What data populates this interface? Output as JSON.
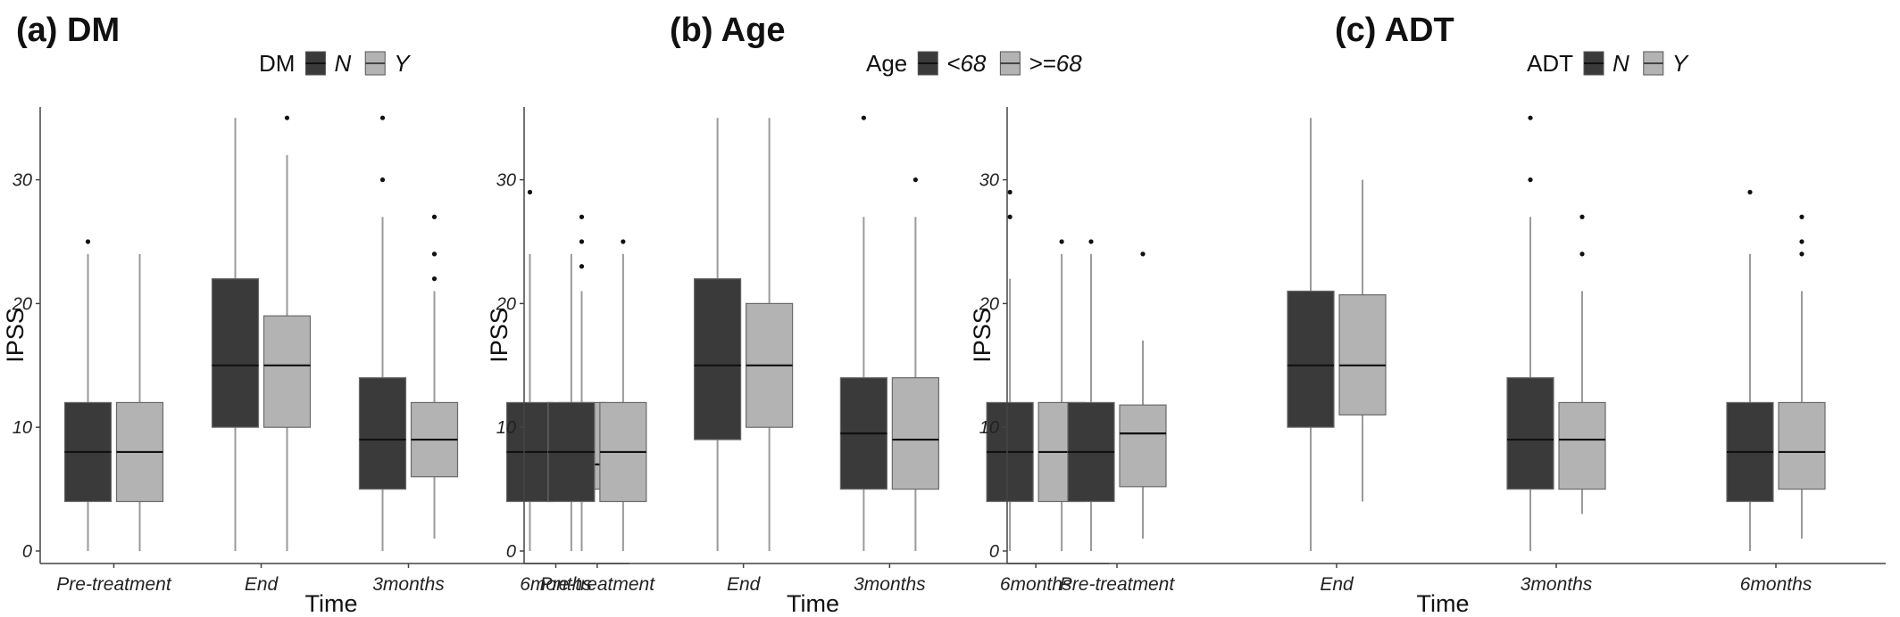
{
  "chart_data": [
    {
      "type": "boxplot",
      "panel_label": "(a) DM",
      "legend_title": "DM",
      "legend_position": "top",
      "xlabel": "Time",
      "ylabel": "IPSS",
      "ylim": [
        0,
        35
      ],
      "yticks": [
        0,
        10,
        20,
        30
      ],
      "grid": false,
      "categories": [
        "Pre-treatment",
        "End",
        "3months",
        "6months"
      ],
      "series": [
        {
          "name": "N",
          "color": "#3a3a3a",
          "boxes": [
            {
              "min": 0,
              "q1": 4,
              "median": 8,
              "q3": 12,
              "max": 24,
              "outliers": [
                25
              ]
            },
            {
              "min": 0,
              "q1": 10,
              "median": 15,
              "q3": 22,
              "max": 35,
              "outliers": []
            },
            {
              "min": 0,
              "q1": 5,
              "median": 9,
              "q3": 14,
              "max": 27,
              "outliers": [
                30,
                35
              ]
            },
            {
              "min": 0,
              "q1": 4,
              "median": 8,
              "q3": 12,
              "max": 24,
              "outliers": [
                29
              ]
            }
          ]
        },
        {
          "name": "Y",
          "color": "#b3b3b3",
          "boxes": [
            {
              "min": 0,
              "q1": 4,
              "median": 8,
              "q3": 12,
              "max": 24,
              "outliers": []
            },
            {
              "min": 0,
              "q1": 10,
              "median": 15,
              "q3": 19,
              "max": 32,
              "outliers": [
                35
              ]
            },
            {
              "min": 1,
              "q1": 6,
              "median": 9,
              "q3": 12,
              "max": 21,
              "outliers": [
                22,
                24,
                27
              ]
            },
            {
              "min": 0,
              "q1": 5,
              "median": 7,
              "q3": 12,
              "max": 21,
              "outliers": [
                23,
                25,
                27
              ]
            }
          ]
        }
      ]
    },
    {
      "type": "boxplot",
      "panel_label": "(b) Age",
      "legend_title": "Age",
      "legend_position": "top",
      "xlabel": "Time",
      "ylabel": "IPSS",
      "ylim": [
        0,
        35
      ],
      "yticks": [
        0,
        10,
        20,
        30
      ],
      "grid": false,
      "categories": [
        "Pre-treatment",
        "End",
        "3months",
        "6months"
      ],
      "series": [
        {
          "name": "<68",
          "color": "#3a3a3a",
          "boxes": [
            {
              "min": 0,
              "q1": 4,
              "median": 8,
              "q3": 12,
              "max": 24,
              "outliers": []
            },
            {
              "min": 0,
              "q1": 9,
              "median": 15,
              "q3": 22,
              "max": 35,
              "outliers": []
            },
            {
              "min": 0,
              "q1": 5,
              "median": 9.5,
              "q3": 14,
              "max": 27,
              "outliers": [
                35
              ]
            },
            {
              "min": 0,
              "q1": 4,
              "median": 8,
              "q3": 12,
              "max": 22,
              "outliers": [
                27,
                29
              ]
            }
          ]
        },
        {
          "name": ">=68",
          "color": "#b3b3b3",
          "boxes": [
            {
              "min": 0,
              "q1": 4,
              "median": 8,
              "q3": 12,
              "max": 24,
              "outliers": [
                25
              ]
            },
            {
              "min": 0,
              "q1": 10,
              "median": 15,
              "q3": 20,
              "max": 35,
              "outliers": []
            },
            {
              "min": 0,
              "q1": 5,
              "median": 9,
              "q3": 14,
              "max": 27,
              "outliers": [
                30
              ]
            },
            {
              "min": 0,
              "q1": 4,
              "median": 8,
              "q3": 12,
              "max": 24,
              "outliers": [
                25
              ]
            }
          ]
        }
      ]
    },
    {
      "type": "boxplot",
      "panel_label": "(c) ADT",
      "legend_title": "ADT",
      "legend_position": "top",
      "xlabel": "Time",
      "ylabel": "IPSS",
      "ylim": [
        0,
        35
      ],
      "yticks": [
        0,
        10,
        20,
        30
      ],
      "grid": false,
      "categories": [
        "Pre-treatment",
        "End",
        "3months",
        "6months"
      ],
      "series": [
        {
          "name": "N",
          "color": "#3a3a3a",
          "boxes": [
            {
              "min": 0,
              "q1": 4,
              "median": 8,
              "q3": 12,
              "max": 24,
              "outliers": [
                25
              ]
            },
            {
              "min": 0,
              "q1": 10,
              "median": 15,
              "q3": 21,
              "max": 35,
              "outliers": []
            },
            {
              "min": 0,
              "q1": 5,
              "median": 9,
              "q3": 14,
              "max": 27,
              "outliers": [
                30,
                35
              ]
            },
            {
              "min": 0,
              "q1": 4,
              "median": 8,
              "q3": 12,
              "max": 24,
              "outliers": [
                29
              ]
            }
          ]
        },
        {
          "name": "Y",
          "color": "#b3b3b3",
          "boxes": [
            {
              "min": 1,
              "q1": 5.2,
              "median": 9.5,
              "q3": 11.8,
              "max": 17,
              "outliers": [
                24
              ]
            },
            {
              "min": 4,
              "q1": 11,
              "median": 15,
              "q3": 20.7,
              "max": 30,
              "outliers": []
            },
            {
              "min": 3,
              "q1": 5,
              "median": 9,
              "q3": 12,
              "max": 21,
              "outliers": [
                24,
                27
              ]
            },
            {
              "min": 1,
              "q1": 5,
              "median": 8,
              "q3": 12,
              "max": 21,
              "outliers": [
                24,
                25,
                27
              ]
            }
          ]
        }
      ]
    }
  ]
}
